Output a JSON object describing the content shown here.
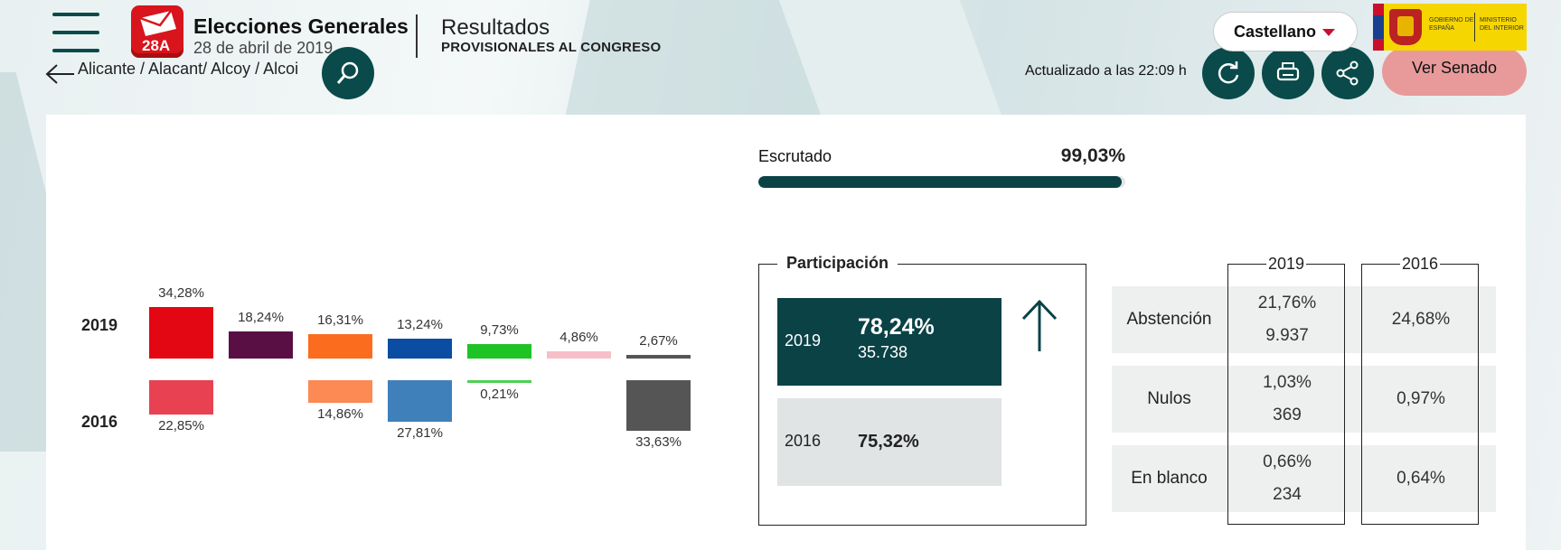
{
  "header": {
    "logo_text": "28A",
    "title": "Elecciones Generales",
    "date": "28 de abril de 2019",
    "subtitle": "Resultados",
    "subtitle_detail": "PROVISIONALES AL CONGRESO",
    "language": "Castellano",
    "gov_logo_text_1": "GOBIERNO DE ESPAÑA",
    "gov_logo_text_2": "MINISTERIO DEL INTERIOR"
  },
  "toolbar": {
    "breadcrumb": "Alicante / Alacant/ Alcoy / Alcoi",
    "updated": "Actualizado a las 22:09 h",
    "senado_label": "Ver Senado"
  },
  "colors": {
    "accent": "#0a4246",
    "brand_red": "#d8141c",
    "senado_button": "#e89a9a"
  },
  "icons": [
    "menu-icon",
    "back-arrow-icon",
    "search-icon",
    "refresh-icon",
    "print-icon",
    "share-icon",
    "chevron-down-icon",
    "arrow-up-icon"
  ],
  "chart_data": {
    "type": "bar",
    "series": [
      {
        "name": "2019",
        "values": [
          34.28,
          18.24,
          16.31,
          13.24,
          9.73,
          4.86,
          2.67
        ],
        "labels": [
          "34,28%",
          "18,24%",
          "16,31%",
          "13,24%",
          "9,73%",
          "4,86%",
          "2,67%"
        ]
      },
      {
        "name": "2016",
        "values": [
          22.85,
          null,
          14.86,
          27.81,
          0.21,
          null,
          33.63
        ],
        "labels": [
          "22,85%",
          "",
          "14,86%",
          "27,81%",
          "0,21%",
          "",
          "33,63%"
        ]
      }
    ],
    "colors_2019": [
      "#e30613",
      "#5a0f44",
      "#fc6c1e",
      "#0a4da2",
      "#1ec325",
      "#f7bfc9",
      "#555555"
    ],
    "colors_2016": [
      "#e84252",
      "#5a0f44",
      "#fd8a55",
      "#3f80bb",
      "#4fd055",
      "#f7bfc9",
      "#555555"
    ]
  },
  "escrutado": {
    "label": "Escrutado",
    "value": "99,03%",
    "fraction": 0.9903
  },
  "participacion": {
    "title": "Participación",
    "y2019": {
      "year": "2019",
      "pct": "78,24%",
      "votes": "35.738"
    },
    "y2016": {
      "year": "2016",
      "pct": "75,32%"
    }
  },
  "stats": {
    "year_2019": "2019",
    "year_2016": "2016",
    "rows": [
      {
        "label": "Abstención",
        "v2019_pct": "21,76%",
        "v2019_num": "9.937",
        "v2016": "24,68%"
      },
      {
        "label": "Nulos",
        "v2019_pct": "1,03%",
        "v2019_num": "369",
        "v2016": "0,97%"
      },
      {
        "label": "En blanco",
        "v2019_pct": "0,66%",
        "v2019_num": "234",
        "v2016": "0,64%"
      }
    ]
  }
}
